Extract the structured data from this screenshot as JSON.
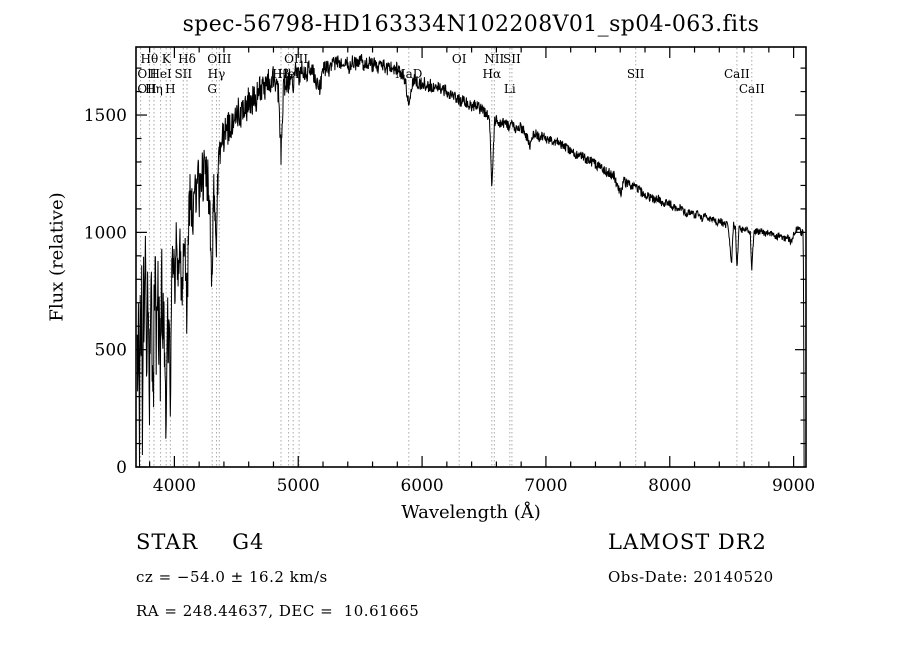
{
  "chart_data": {
    "type": "line",
    "title": "spec-56798-HD163334N102208V01_sp04-063.fits",
    "xlabel": "Wavelength (Å)",
    "ylabel": "Flux (relative)",
    "xlim": [
      3690,
      9100
    ],
    "ylim": [
      0,
      1790
    ],
    "x_ticks": {
      "major": [
        4000,
        5000,
        6000,
        7000,
        8000,
        9000
      ],
      "minor_step": 200
    },
    "y_ticks": {
      "major": [
        0,
        500,
        1000,
        1500
      ],
      "minor_step": 100
    },
    "line_color": "#000000",
    "marker_color": "#aaaaaa",
    "grid": "dotted vertical lines at labeled spectral features",
    "legend": "none",
    "markers": [
      3727,
      3798,
      3835,
      3889,
      3934,
      3968,
      4072,
      4102,
      4305,
      4340,
      4363,
      4861,
      4922,
      4959,
      5007,
      5893,
      6300,
      6563,
      6583,
      6708,
      6725,
      7725,
      8542,
      8662
    ],
    "labels": [
      {
        "text": "Hθ",
        "wl": 3798,
        "row": 1
      },
      {
        "text": "K",
        "wl": 3934,
        "row": 1
      },
      {
        "text": "Hδ",
        "wl": 4102,
        "row": 1
      },
      {
        "text": "OIII",
        "wl": 4363,
        "row": 1
      },
      {
        "text": "OIII",
        "wl": 4983,
        "row": 1
      },
      {
        "text": "OI",
        "wl": 6300,
        "row": 1
      },
      {
        "text": "NII",
        "wl": 6583,
        "row": 1
      },
      {
        "text": "SII",
        "wl": 6725,
        "row": 1
      },
      {
        "text": "OII",
        "wl": 3727,
        "row": 2
      },
      {
        "text": "HeI",
        "wl": 3889,
        "row": 2
      },
      {
        "text": "SII",
        "wl": 4072,
        "row": 2
      },
      {
        "text": "Hγ",
        "wl": 4340,
        "row": 2
      },
      {
        "text": "Hβ",
        "wl": 4861,
        "row": 2
      },
      {
        "text": "HeI",
        "wl": 4922,
        "row": 2
      },
      {
        "text": "NaD",
        "wl": 5893,
        "row": 2
      },
      {
        "text": "Hα",
        "wl": 6563,
        "row": 2
      },
      {
        "text": "SII",
        "wl": 7725,
        "row": 2
      },
      {
        "text": "CaII",
        "wl": 8542,
        "row": 2
      },
      {
        "text": "OII",
        "wl": 3727,
        "row": 3
      },
      {
        "text": "Hη",
        "wl": 3835,
        "row": 3
      },
      {
        "text": "H",
        "wl": 3968,
        "row": 3
      },
      {
        "text": "G",
        "wl": 4305,
        "row": 3
      },
      {
        "text": "Li",
        "wl": 6708,
        "row": 3
      },
      {
        "text": "CaII",
        "wl": 8662,
        "row": 3
      }
    ],
    "noise_profile": [
      [
        3700,
        200
      ],
      [
        3950,
        200
      ],
      [
        4000,
        130
      ],
      [
        4300,
        110
      ],
      [
        4500,
        70
      ],
      [
        4800,
        55
      ],
      [
        5100,
        40
      ],
      [
        5600,
        30
      ],
      [
        6000,
        28
      ],
      [
        6500,
        24
      ],
      [
        7000,
        20
      ],
      [
        7600,
        22
      ],
      [
        8200,
        16
      ],
      [
        9085,
        14
      ]
    ],
    "series": [
      {
        "name": "spectrum",
        "points": [
          [
            3700,
            620
          ],
          [
            3706,
            340
          ],
          [
            3712,
            720
          ],
          [
            3718,
            170
          ],
          [
            3724,
            760
          ],
          [
            3730,
            470
          ],
          [
            3736,
            700
          ],
          [
            3742,
            210
          ],
          [
            3750,
            790
          ],
          [
            3758,
            520
          ],
          [
            3766,
            860
          ],
          [
            3774,
            330
          ],
          [
            3782,
            680
          ],
          [
            3790,
            520
          ],
          [
            3798,
            260
          ],
          [
            3806,
            720
          ],
          [
            3814,
            640
          ],
          [
            3822,
            500
          ],
          [
            3830,
            330
          ],
          [
            3838,
            760
          ],
          [
            3846,
            880
          ],
          [
            3854,
            470
          ],
          [
            3862,
            800
          ],
          [
            3870,
            640
          ],
          [
            3878,
            520
          ],
          [
            3886,
            400
          ],
          [
            3894,
            820
          ],
          [
            3902,
            700
          ],
          [
            3912,
            540
          ],
          [
            3922,
            620
          ],
          [
            3933,
            200
          ],
          [
            3944,
            700
          ],
          [
            3956,
            560
          ],
          [
            3968,
            280
          ],
          [
            3980,
            800
          ],
          [
            3992,
            930
          ],
          [
            4004,
            720
          ],
          [
            4016,
            980
          ],
          [
            4028,
            860
          ],
          [
            4040,
            990
          ],
          [
            4052,
            800
          ],
          [
            4064,
            740
          ],
          [
            4076,
            1010
          ],
          [
            4090,
            900
          ],
          [
            4102,
            620
          ],
          [
            4116,
            1080
          ],
          [
            4130,
            1150
          ],
          [
            4145,
            1060
          ],
          [
            4160,
            1200
          ],
          [
            4175,
            1120
          ],
          [
            4190,
            1240
          ],
          [
            4205,
            1160
          ],
          [
            4220,
            1290
          ],
          [
            4235,
            1200
          ],
          [
            4250,
            1330
          ],
          [
            4265,
            1220
          ],
          [
            4280,
            1160
          ],
          [
            4295,
            900
          ],
          [
            4305,
            820
          ],
          [
            4315,
            1200
          ],
          [
            4330,
            1100
          ],
          [
            4340,
            960
          ],
          [
            4352,
            1280
          ],
          [
            4365,
            1380
          ],
          [
            4380,
            1340
          ],
          [
            4400,
            1430
          ],
          [
            4420,
            1390
          ],
          [
            4440,
            1470
          ],
          [
            4460,
            1420
          ],
          [
            4480,
            1500
          ],
          [
            4500,
            1460
          ],
          [
            4520,
            1530
          ],
          [
            4540,
            1490
          ],
          [
            4560,
            1550
          ],
          [
            4580,
            1510
          ],
          [
            4600,
            1560
          ],
          [
            4620,
            1540
          ],
          [
            4640,
            1590
          ],
          [
            4660,
            1560
          ],
          [
            4680,
            1620
          ],
          [
            4700,
            1590
          ],
          [
            4720,
            1640
          ],
          [
            4740,
            1610
          ],
          [
            4760,
            1650
          ],
          [
            4780,
            1630
          ],
          [
            4800,
            1660
          ],
          [
            4820,
            1640
          ],
          [
            4840,
            1600
          ],
          [
            4861,
            1340
          ],
          [
            4880,
            1610
          ],
          [
            4900,
            1650
          ],
          [
            4920,
            1630
          ],
          [
            4940,
            1670
          ],
          [
            4960,
            1640
          ],
          [
            4980,
            1680
          ],
          [
            5000,
            1660
          ],
          [
            5030,
            1690
          ],
          [
            5060,
            1670
          ],
          [
            5090,
            1700
          ],
          [
            5120,
            1680
          ],
          [
            5150,
            1640
          ],
          [
            5175,
            1610
          ],
          [
            5200,
            1690
          ],
          [
            5230,
            1710
          ],
          [
            5260,
            1690
          ],
          [
            5290,
            1720
          ],
          [
            5320,
            1740
          ],
          [
            5350,
            1710
          ],
          [
            5380,
            1730
          ],
          [
            5410,
            1700
          ],
          [
            5440,
            1730
          ],
          [
            5470,
            1720
          ],
          [
            5500,
            1740
          ],
          [
            5530,
            1710
          ],
          [
            5560,
            1730
          ],
          [
            5590,
            1710
          ],
          [
            5620,
            1720
          ],
          [
            5650,
            1700
          ],
          [
            5680,
            1720
          ],
          [
            5710,
            1690
          ],
          [
            5740,
            1710
          ],
          [
            5770,
            1690
          ],
          [
            5800,
            1700
          ],
          [
            5830,
            1680
          ],
          [
            5860,
            1650
          ],
          [
            5893,
            1550
          ],
          [
            5920,
            1640
          ],
          [
            5950,
            1650
          ],
          [
            5980,
            1630
          ],
          [
            6010,
            1640
          ],
          [
            6040,
            1620
          ],
          [
            6070,
            1630
          ],
          [
            6100,
            1610
          ],
          [
            6130,
            1620
          ],
          [
            6160,
            1600
          ],
          [
            6190,
            1610
          ],
          [
            6220,
            1590
          ],
          [
            6250,
            1580
          ],
          [
            6280,
            1570
          ],
          [
            6310,
            1560
          ],
          [
            6340,
            1560
          ],
          [
            6370,
            1550
          ],
          [
            6400,
            1540
          ],
          [
            6430,
            1540
          ],
          [
            6460,
            1530
          ],
          [
            6490,
            1520
          ],
          [
            6520,
            1500
          ],
          [
            6545,
            1490
          ],
          [
            6563,
            1170
          ],
          [
            6585,
            1470
          ],
          [
            6610,
            1480
          ],
          [
            6640,
            1460
          ],
          [
            6670,
            1470
          ],
          [
            6700,
            1450
          ],
          [
            6730,
            1460
          ],
          [
            6760,
            1440
          ],
          [
            6790,
            1450
          ],
          [
            6820,
            1430
          ],
          [
            6850,
            1400
          ],
          [
            6870,
            1360
          ],
          [
            6890,
            1410
          ],
          [
            6920,
            1420
          ],
          [
            6950,
            1400
          ],
          [
            6980,
            1410
          ],
          [
            7010,
            1390
          ],
          [
            7040,
            1400
          ],
          [
            7070,
            1380
          ],
          [
            7100,
            1390
          ],
          [
            7130,
            1370
          ],
          [
            7160,
            1360
          ],
          [
            7190,
            1350
          ],
          [
            7220,
            1340
          ],
          [
            7250,
            1330
          ],
          [
            7280,
            1330
          ],
          [
            7310,
            1320
          ],
          [
            7340,
            1310
          ],
          [
            7370,
            1300
          ],
          [
            7400,
            1290
          ],
          [
            7430,
            1280
          ],
          [
            7460,
            1270
          ],
          [
            7490,
            1260
          ],
          [
            7520,
            1250
          ],
          [
            7550,
            1240
          ],
          [
            7580,
            1190
          ],
          [
            7605,
            1170
          ],
          [
            7630,
            1220
          ],
          [
            7660,
            1210
          ],
          [
            7690,
            1200
          ],
          [
            7720,
            1190
          ],
          [
            7750,
            1180
          ],
          [
            7780,
            1170
          ],
          [
            7810,
            1160
          ],
          [
            7840,
            1150
          ],
          [
            7870,
            1140
          ],
          [
            7900,
            1150
          ],
          [
            7930,
            1130
          ],
          [
            7960,
            1120
          ],
          [
            7990,
            1130
          ],
          [
            8020,
            1110
          ],
          [
            8050,
            1100
          ],
          [
            8080,
            1110
          ],
          [
            8110,
            1090
          ],
          [
            8140,
            1080
          ],
          [
            8170,
            1090
          ],
          [
            8200,
            1070
          ],
          [
            8230,
            1080
          ],
          [
            8260,
            1060
          ],
          [
            8290,
            1070
          ],
          [
            8320,
            1050
          ],
          [
            8350,
            1060
          ],
          [
            8380,
            1040
          ],
          [
            8410,
            1050
          ],
          [
            8440,
            1030
          ],
          [
            8470,
            1040
          ],
          [
            8498,
            860
          ],
          [
            8515,
            1030
          ],
          [
            8530,
            1020
          ],
          [
            8542,
            850
          ],
          [
            8560,
            1020
          ],
          [
            8590,
            1010
          ],
          [
            8620,
            1020
          ],
          [
            8650,
            1000
          ],
          [
            8662,
            840
          ],
          [
            8680,
            1010
          ],
          [
            8710,
            1000
          ],
          [
            8740,
            1010
          ],
          [
            8770,
            990
          ],
          [
            8800,
            1000
          ],
          [
            8830,
            990
          ],
          [
            8860,
            980
          ],
          [
            8890,
            990
          ],
          [
            8920,
            970
          ],
          [
            8950,
            980
          ],
          [
            8980,
            960
          ],
          [
            9010,
            1000
          ],
          [
            9040,
            1030
          ],
          [
            9060,
            990
          ],
          [
            9078,
            1010
          ],
          [
            9085,
            0
          ]
        ]
      }
    ]
  },
  "footer": {
    "class_label": "STAR",
    "subclass": "G4",
    "cz": "cz = −54.0 ± 16.2 km/s",
    "radec": "RA = 248.44637, DEC =  10.61665",
    "survey": "LAMOST DR2",
    "obs_date": "Obs-Date: 20140520"
  }
}
